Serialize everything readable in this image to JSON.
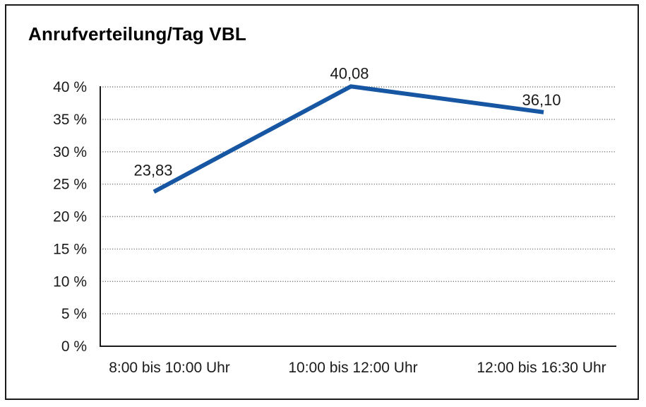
{
  "title": "Anrufverteilung/Tag VBL",
  "colors": {
    "background": "#ffffff",
    "border": "#1a1a1a",
    "axis": "#1a1a1a",
    "grid": "#777777",
    "text": "#1a1a1a",
    "line": "#1656a3"
  },
  "chart_data": {
    "type": "line",
    "title": "Anrufverteilung/Tag VBL",
    "categories": [
      "8:00 bis 10:00 Uhr",
      "10:00 bis 12:00 Uhr",
      "12:00 bis 16:30 Uhr"
    ],
    "values": [
      23.83,
      40.08,
      36.1
    ],
    "value_labels": [
      "23,83",
      "40,08",
      "36,10"
    ],
    "xlabel": "",
    "ylabel": "",
    "ylim": [
      0,
      40
    ],
    "ytick_step": 5,
    "ytick_labels": [
      "0 %",
      "5 %",
      "10 %",
      "15 %",
      "20 %",
      "25 %",
      "30 %",
      "35 %",
      "40 %"
    ],
    "grid": "horizontal-dotted",
    "legend": "none",
    "line_color": "#1656a3",
    "decimal_format": "german-comma"
  }
}
